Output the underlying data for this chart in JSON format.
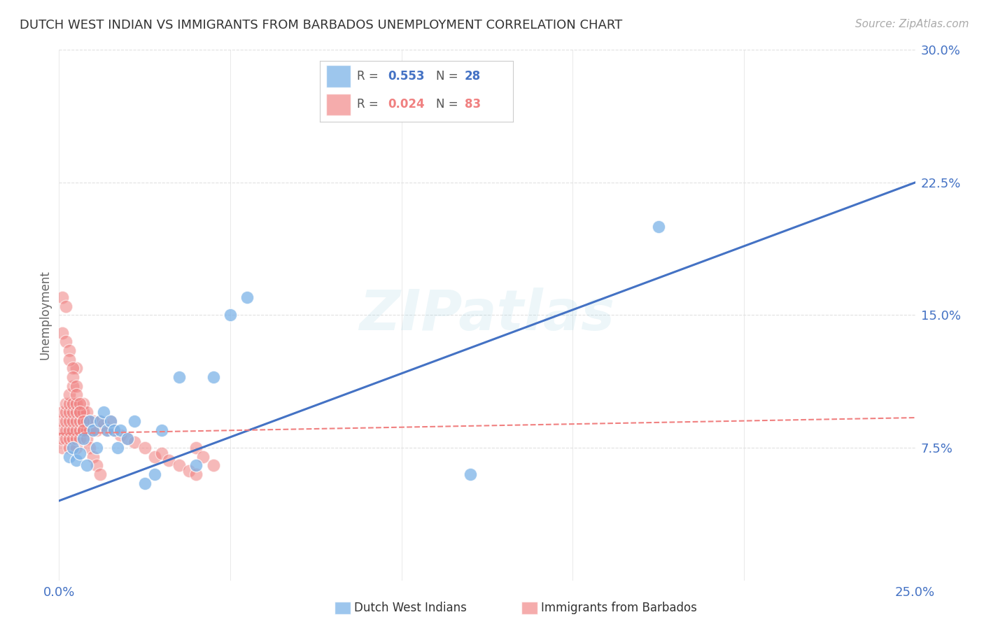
{
  "title": "DUTCH WEST INDIAN VS IMMIGRANTS FROM BARBADOS UNEMPLOYMENT CORRELATION CHART",
  "source": "Source: ZipAtlas.com",
  "ylabel": "Unemployment",
  "xlim": [
    0.0,
    0.25
  ],
  "ylim": [
    0.0,
    0.3
  ],
  "yticks": [
    0.0,
    0.075,
    0.15,
    0.225,
    0.3
  ],
  "ytick_labels": [
    "",
    "7.5%",
    "15.0%",
    "22.5%",
    "30.0%"
  ],
  "background_color": "#ffffff",
  "grid_color": "#e0e0e0",
  "watermark": "ZIPatlas",
  "blue_color": "#7db3e8",
  "pink_color": "#f08080",
  "blue_line_color": "#4472c4",
  "pink_line_color": "#f08080",
  "blue_line_x0": 0.0,
  "blue_line_y0": 0.045,
  "blue_line_x1": 0.25,
  "blue_line_y1": 0.225,
  "pink_line_x0": 0.0,
  "pink_line_y0": 0.083,
  "pink_line_x1": 0.25,
  "pink_line_y1": 0.092,
  "dwi_x": [
    0.003,
    0.004,
    0.005,
    0.006,
    0.007,
    0.008,
    0.009,
    0.01,
    0.011,
    0.012,
    0.013,
    0.014,
    0.015,
    0.016,
    0.017,
    0.018,
    0.02,
    0.022,
    0.025,
    0.028,
    0.03,
    0.035,
    0.04,
    0.045,
    0.05,
    0.055,
    0.12,
    0.175
  ],
  "dwi_y": [
    0.07,
    0.075,
    0.068,
    0.072,
    0.08,
    0.065,
    0.09,
    0.085,
    0.075,
    0.09,
    0.095,
    0.085,
    0.09,
    0.085,
    0.075,
    0.085,
    0.08,
    0.09,
    0.055,
    0.06,
    0.085,
    0.115,
    0.065,
    0.115,
    0.15,
    0.16,
    0.06,
    0.2
  ],
  "barb_x": [
    0.001,
    0.001,
    0.001,
    0.001,
    0.001,
    0.002,
    0.002,
    0.002,
    0.002,
    0.002,
    0.003,
    0.003,
    0.003,
    0.003,
    0.003,
    0.003,
    0.003,
    0.004,
    0.004,
    0.004,
    0.004,
    0.004,
    0.004,
    0.005,
    0.005,
    0.005,
    0.005,
    0.005,
    0.005,
    0.005,
    0.006,
    0.006,
    0.006,
    0.006,
    0.007,
    0.007,
    0.007,
    0.007,
    0.008,
    0.008,
    0.008,
    0.009,
    0.009,
    0.01,
    0.01,
    0.011,
    0.012,
    0.013,
    0.014,
    0.015,
    0.016,
    0.018,
    0.02,
    0.022,
    0.025,
    0.028,
    0.03,
    0.032,
    0.035,
    0.038,
    0.04,
    0.04,
    0.042,
    0.045,
    0.001,
    0.001,
    0.002,
    0.002,
    0.003,
    0.003,
    0.004,
    0.004,
    0.005,
    0.005,
    0.006,
    0.006,
    0.007,
    0.007,
    0.008,
    0.009,
    0.01,
    0.011,
    0.012
  ],
  "barb_y": [
    0.075,
    0.08,
    0.085,
    0.09,
    0.095,
    0.08,
    0.085,
    0.09,
    0.095,
    0.1,
    0.075,
    0.08,
    0.085,
    0.09,
    0.095,
    0.1,
    0.105,
    0.08,
    0.085,
    0.09,
    0.095,
    0.1,
    0.11,
    0.075,
    0.08,
    0.085,
    0.09,
    0.095,
    0.1,
    0.12,
    0.08,
    0.085,
    0.09,
    0.095,
    0.085,
    0.09,
    0.095,
    0.1,
    0.085,
    0.09,
    0.095,
    0.085,
    0.09,
    0.085,
    0.09,
    0.085,
    0.09,
    0.088,
    0.085,
    0.09,
    0.085,
    0.082,
    0.08,
    0.078,
    0.075,
    0.07,
    0.072,
    0.068,
    0.065,
    0.062,
    0.06,
    0.075,
    0.07,
    0.065,
    0.14,
    0.16,
    0.135,
    0.155,
    0.13,
    0.125,
    0.12,
    0.115,
    0.11,
    0.105,
    0.1,
    0.095,
    0.09,
    0.085,
    0.08,
    0.075,
    0.07,
    0.065,
    0.06
  ]
}
